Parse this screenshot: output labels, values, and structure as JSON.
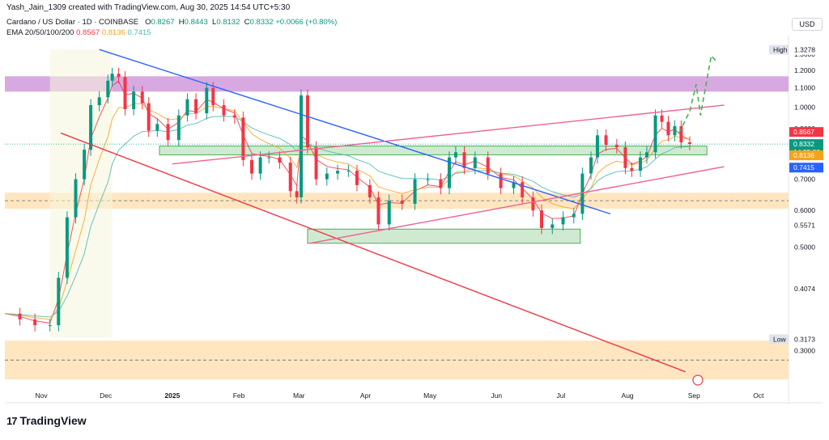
{
  "header": {
    "credit": "Yash_Jain_1309 created with TradingView.com, Aug 30, 2025 14:54 UTC+5:30",
    "symbol": "Cardano / US Dollar · 1D · COINBASE",
    "ohlc": {
      "open_label": "O",
      "open": "0.8267",
      "high_label": "H",
      "high": "0.8443",
      "low_label": "L",
      "low": "0.8132",
      "close_label": "C",
      "close": "0.8332",
      "change": "+0.0066 (+0.80%)"
    },
    "ema_label": "EMA 20/50/100/200",
    "ema_values": [
      "0.8567",
      "0.8136",
      "0.7415"
    ]
  },
  "currency": "USD",
  "brand": {
    "logo": "17",
    "name": "TradingView"
  },
  "colors": {
    "up": "#089981",
    "down": "#f23645",
    "ema20": "#f23645",
    "ema50": "#f7a21b",
    "ema100": "#4fb7b0",
    "blue_line": "#2962ff",
    "purple_zone": "#ce93d8",
    "orange_zone": "#ffe0b2",
    "green_zone": "#c8e6c9"
  },
  "chart_data": {
    "type": "candlestick",
    "y_scale": "log",
    "ylim": [
      0.255,
      1.38
    ],
    "xlim": [
      "2024-10-15",
      "2025-10-15"
    ],
    "x_ticks": [
      {
        "label": "Nov",
        "date": "2024-11-01"
      },
      {
        "label": "Dec",
        "date": "2024-12-01"
      },
      {
        "label": "2025",
        "date": "2025-01-01"
      },
      {
        "label": "Feb",
        "date": "2025-02-01"
      },
      {
        "label": "Mar",
        "date": "2025-03-01"
      },
      {
        "label": "Apr",
        "date": "2025-04-01"
      },
      {
        "label": "May",
        "date": "2025-05-01"
      },
      {
        "label": "Jun",
        "date": "2025-06-01"
      },
      {
        "label": "Jul",
        "date": "2025-07-01"
      },
      {
        "label": "Aug",
        "date": "2025-08-01"
      },
      {
        "label": "Sep",
        "date": "2025-09-01"
      },
      {
        "label": "Oct",
        "date": "2025-10-01"
      }
    ],
    "y_ticks": [
      "1.3000",
      "1.2000",
      "1.1000",
      "1.0000",
      "0.9000",
      "0.8000",
      "0.7000",
      "0.6000",
      "0.5000",
      "0.3000"
    ],
    "price_badges": [
      {
        "label": "High",
        "value": "1.3278",
        "kind": "plain"
      },
      {
        "label": "",
        "value": "0.8567",
        "kind": "ema20"
      },
      {
        "label": "",
        "value": "0.8332",
        "kind": "last",
        "countdown": "14:35:33"
      },
      {
        "label": "",
        "value": "0.8136",
        "kind": "ema50"
      },
      {
        "label": "",
        "value": "0.7415",
        "kind": "ema100"
      },
      {
        "label": "",
        "value": "0.5571",
        "kind": "plain"
      },
      {
        "label": "",
        "value": "0.4074",
        "kind": "plain"
      },
      {
        "label": "Low",
        "value": "0.3173",
        "kind": "plain"
      }
    ],
    "zones": [
      {
        "name": "purple-resistance-zone",
        "from": "2024-10-15",
        "to": "2025-10-15",
        "low": 1.08,
        "high": 1.165,
        "color": "#ce93d8"
      },
      {
        "name": "green-support-zone-upper",
        "from": "2024-12-26",
        "to": "2025-09-07",
        "low": 0.79,
        "high": 0.825,
        "color": "#c8e6c9"
      },
      {
        "name": "green-support-zone-lower",
        "from": "2025-03-05",
        "to": "2025-07-10",
        "low": 0.51,
        "high": 0.547,
        "color": "#c8e6c9"
      },
      {
        "name": "orange-zone-mid",
        "from": "2024-10-15",
        "to": "2025-10-15",
        "low": 0.605,
        "high": 0.655,
        "color": "#ffe0b2"
      },
      {
        "name": "orange-zone-low",
        "from": "2024-10-15",
        "to": "2025-10-15",
        "low": 0.26,
        "high": 0.315,
        "color": "#ffe0b2"
      }
    ],
    "trendlines": [
      {
        "name": "blue-descending-trendline",
        "color": "#2962ff",
        "p1": [
          "2024-11-28",
          1.33
        ],
        "p2": [
          "2025-07-24",
          0.59
        ]
      },
      {
        "name": "red-lower-trendline",
        "color": "#f23645",
        "p1": [
          "2024-11-10",
          0.88
        ],
        "p2": [
          "2025-08-28",
          0.27
        ]
      },
      {
        "name": "pink-rising-channel-top",
        "color": "#f06292",
        "p1": [
          "2025-01-01",
          0.755
        ],
        "p2": [
          "2025-09-15",
          1.01
        ]
      },
      {
        "name": "pink-rising-channel-bottom",
        "color": "#f06292",
        "p1": [
          "2025-03-06",
          0.51
        ],
        "p2": [
          "2025-09-15",
          0.745
        ]
      }
    ],
    "projection": {
      "name": "green-dashed-projection",
      "color": "#4caf50",
      "points": [
        [
          "2025-08-25",
          0.88
        ],
        [
          "2025-08-30",
          0.98
        ],
        [
          "2025-09-02",
          1.12
        ],
        [
          "2025-09-04",
          0.96
        ],
        [
          "2025-09-09",
          1.29
        ],
        [
          "2025-09-11",
          1.26
        ]
      ]
    },
    "candles_summary": "Daily ADA/USD candles from Nov 2024 to Aug 30 2025; price rallied from ~0.33 to ~1.32 in Nov-Dec 2024, ranged 0.58-1.18 through Mar 2025, declined to ~0.51 by Jun 2025, then rallied to ~0.99 in Aug 2025 and closed at 0.8332.",
    "close_series": [
      [
        "2024-10-15",
        0.36
      ],
      [
        "2024-10-22",
        0.35
      ],
      [
        "2024-10-29",
        0.34
      ],
      [
        "2024-11-05",
        0.34
      ],
      [
        "2024-11-09",
        0.43
      ],
      [
        "2024-11-13",
        0.58
      ],
      [
        "2024-11-17",
        0.7
      ],
      [
        "2024-11-21",
        0.81
      ],
      [
        "2024-11-24",
        1.01
      ],
      [
        "2024-11-28",
        1.05
      ],
      [
        "2024-12-02",
        1.14
      ],
      [
        "2024-12-04",
        1.18
      ],
      [
        "2024-12-07",
        1.16
      ],
      [
        "2024-12-10",
        0.99
      ],
      [
        "2024-12-14",
        1.08
      ],
      [
        "2024-12-18",
        1.02
      ],
      [
        "2024-12-21",
        0.89
      ],
      [
        "2024-12-25",
        0.92
      ],
      [
        "2024-12-30",
        0.85
      ],
      [
        "2025-01-04",
        0.96
      ],
      [
        "2025-01-08",
        1.04
      ],
      [
        "2025-01-12",
        0.97
      ],
      [
        "2025-01-17",
        1.1
      ],
      [
        "2025-01-20",
        1.01
      ],
      [
        "2025-01-25",
        0.96
      ],
      [
        "2025-01-30",
        0.95
      ],
      [
        "2025-02-03",
        0.77
      ],
      [
        "2025-02-07",
        0.72
      ],
      [
        "2025-02-11",
        0.78
      ],
      [
        "2025-02-15",
        0.78
      ],
      [
        "2025-02-20",
        0.76
      ],
      [
        "2025-02-25",
        0.66
      ],
      [
        "2025-02-28",
        0.64
      ],
      [
        "2025-03-02",
        1.06
      ],
      [
        "2025-03-05",
        0.82
      ],
      [
        "2025-03-09",
        0.7
      ],
      [
        "2025-03-14",
        0.72
      ],
      [
        "2025-03-19",
        0.73
      ],
      [
        "2025-03-24",
        0.73
      ],
      [
        "2025-03-28",
        0.68
      ],
      [
        "2025-04-03",
        0.64
      ],
      [
        "2025-04-07",
        0.56
      ],
      [
        "2025-04-12",
        0.63
      ],
      [
        "2025-04-18",
        0.62
      ],
      [
        "2025-04-24",
        0.7
      ],
      [
        "2025-04-30",
        0.7
      ],
      [
        "2025-05-06",
        0.67
      ],
      [
        "2025-05-10",
        0.78
      ],
      [
        "2025-05-13",
        0.8
      ],
      [
        "2025-05-17",
        0.74
      ],
      [
        "2025-05-22",
        0.78
      ],
      [
        "2025-05-28",
        0.72
      ],
      [
        "2025-06-03",
        0.67
      ],
      [
        "2025-06-09",
        0.69
      ],
      [
        "2025-06-13",
        0.64
      ],
      [
        "2025-06-18",
        0.6
      ],
      [
        "2025-06-22",
        0.55
      ],
      [
        "2025-06-27",
        0.56
      ],
      [
        "2025-07-02",
        0.58
      ],
      [
        "2025-07-07",
        0.59
      ],
      [
        "2025-07-11",
        0.72
      ],
      [
        "2025-07-15",
        0.78
      ],
      [
        "2025-07-18",
        0.87
      ],
      [
        "2025-07-22",
        0.83
      ],
      [
        "2025-07-27",
        0.82
      ],
      [
        "2025-07-31",
        0.74
      ],
      [
        "2025-08-03",
        0.73
      ],
      [
        "2025-08-07",
        0.78
      ],
      [
        "2025-08-10",
        0.8
      ],
      [
        "2025-08-14",
        0.96
      ],
      [
        "2025-08-17",
        0.93
      ],
      [
        "2025-08-20",
        0.87
      ],
      [
        "2025-08-23",
        0.91
      ],
      [
        "2025-08-26",
        0.84
      ],
      [
        "2025-08-30",
        0.8332
      ]
    ]
  }
}
